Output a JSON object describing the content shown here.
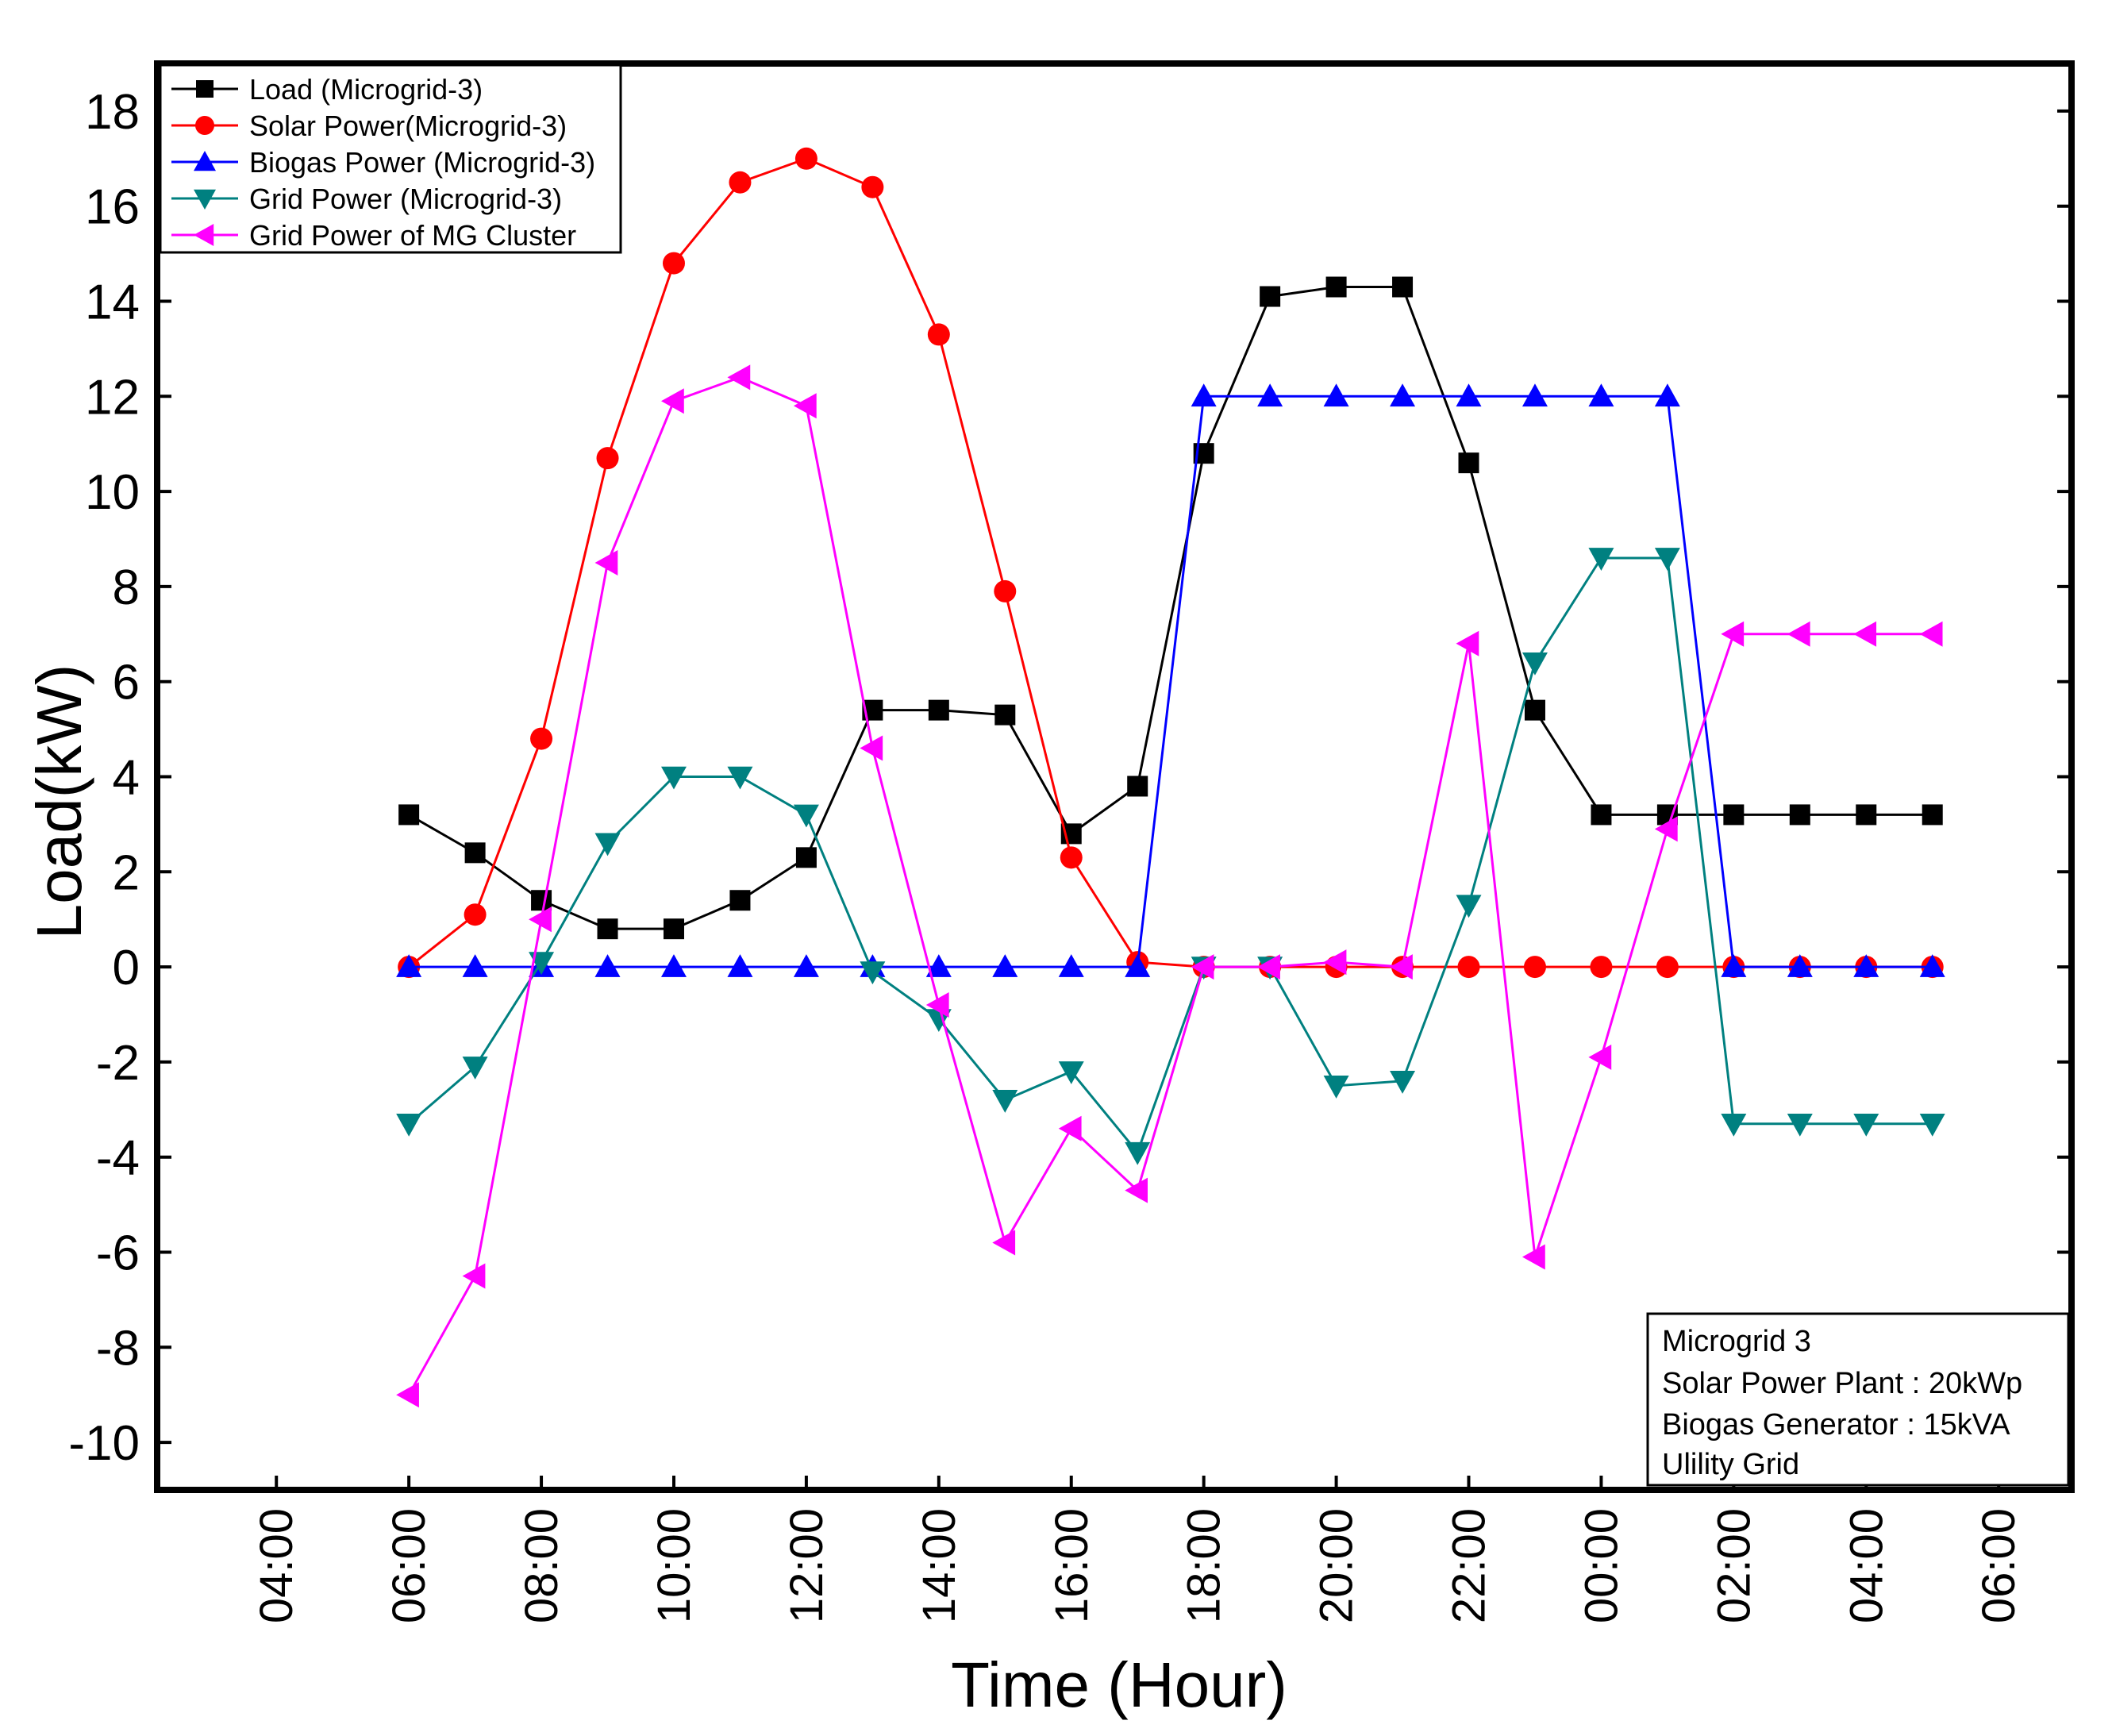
{
  "chart_data": {
    "type": "line",
    "title": "",
    "xlabel": "Time (Hour)",
    "ylabel": "Load(kW)",
    "ylim": [
      -11,
      19
    ],
    "y_ticks": [
      18,
      16,
      14,
      12,
      10,
      8,
      6,
      4,
      2,
      0,
      -2,
      -4,
      -6,
      -8,
      -10
    ],
    "x_ticks": [
      "04:00",
      "06:00",
      "08:00",
      "10:00",
      "12:00",
      "14:00",
      "16:00",
      "18:00",
      "20:00",
      "22:00",
      "00:00",
      "02:00",
      "04:00",
      "06:00"
    ],
    "x_tick_hours": [
      4,
      6,
      8,
      10,
      12,
      14,
      16,
      18,
      20,
      22,
      24,
      26,
      28,
      30
    ],
    "xlim": [
      2.2,
      31.1
    ],
    "x_hours": [
      6,
      7,
      8,
      9,
      10,
      11,
      12,
      13,
      14,
      15,
      16,
      17,
      18,
      19,
      20,
      21,
      22,
      23,
      24,
      25,
      26,
      27,
      28,
      29
    ],
    "series": [
      {
        "name": "Load (Microgrid-3)",
        "color": "#000000",
        "marker": "square",
        "values": [
          3.2,
          2.4,
          1.4,
          0.8,
          0.8,
          1.4,
          2.3,
          5.4,
          5.4,
          5.3,
          2.8,
          3.8,
          10.8,
          14.1,
          14.3,
          14.3,
          10.6,
          5.4,
          3.2,
          3.2,
          3.2,
          3.2,
          3.2,
          3.2
        ]
      },
      {
        "name": "Solar Power(Microgrid-3)",
        "color": "#ff0000",
        "marker": "circle",
        "values": [
          0,
          1.1,
          4.8,
          10.7,
          14.8,
          16.5,
          17.0,
          16.4,
          13.3,
          7.9,
          2.3,
          0.1,
          0,
          0,
          0,
          0,
          0,
          0,
          0,
          0,
          0,
          0,
          0,
          0
        ]
      },
      {
        "name": "Biogas Power (Microgrid-3)",
        "color": "#0000ff",
        "marker": "triangle-up",
        "values": [
          0,
          0,
          0,
          0,
          0,
          0,
          0,
          0,
          0,
          0,
          0,
          0,
          12.0,
          12.0,
          12.0,
          12.0,
          12.0,
          12.0,
          12.0,
          12.0,
          0,
          0,
          0,
          0
        ]
      },
      {
        "name": "Grid Power (Microgrid-3)",
        "color": "#008080",
        "marker": "triangle-down",
        "values": [
          -3.3,
          -2.1,
          0.1,
          2.6,
          4.0,
          4.0,
          3.2,
          -0.1,
          -1.1,
          -2.8,
          -2.2,
          -3.9,
          0,
          0,
          -2.5,
          -2.4,
          1.3,
          6.4,
          8.6,
          8.6,
          -3.3,
          -3.3,
          -3.3,
          -3.3
        ]
      },
      {
        "name": "Grid Power of MG Cluster",
        "color": "#ff00ff",
        "marker": "triangle-left",
        "values": [
          -9.0,
          -6.5,
          1.0,
          8.5,
          11.9,
          12.4,
          11.8,
          4.6,
          -0.8,
          -5.8,
          -3.4,
          -4.7,
          0,
          0,
          0.1,
          0,
          6.8,
          -6.1,
          -1.9,
          2.9,
          7.0,
          7.0,
          7.0,
          7.0
        ]
      }
    ]
  },
  "info_box": {
    "line1": "Microgrid 3",
    "line2": "Solar Power Plant : 20kWp",
    "line3": "Biogas Generator : 15kVA",
    "line4": "Ulility Grid"
  }
}
